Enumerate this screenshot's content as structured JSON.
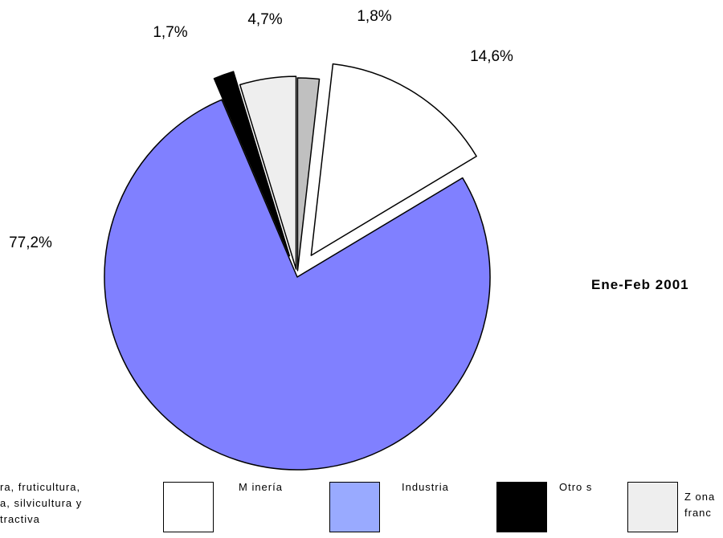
{
  "chart_data": {
    "type": "pie",
    "title": "",
    "subtitle": "Ene-Feb 2001",
    "slices": [
      {
        "name": "Agricultura, fruticultura, ganadería, silvicultura y pesca extractiva",
        "label": "1,8%",
        "value": 1.8,
        "color": "#c0c0c0"
      },
      {
        "name": "Minería",
        "label": "14,6%",
        "value": 14.6,
        "color": "#ffffff"
      },
      {
        "name": "Industria",
        "label": "77,2%",
        "value": 77.2,
        "color": "#8080ff"
      },
      {
        "name": "Otros",
        "label": "1,7%",
        "value": 1.7,
        "color": "#000000"
      },
      {
        "name": "Zona franca",
        "label": "4,7%",
        "value": 4.7,
        "color": "#eeeeee"
      }
    ],
    "legend": [
      {
        "text": "ra, fruticultura,\na, silvicultura y\ntractiva",
        "color": ""
      },
      {
        "text": "M inería",
        "color": "#ffffff"
      },
      {
        "text": "Industria",
        "color": "#99aaff"
      },
      {
        "text": "Otro s",
        "color": "#000000"
      },
      {
        "text": "Z ona\nfranc",
        "color": "#eeeeee"
      }
    ],
    "legend_placement": "bottom"
  }
}
